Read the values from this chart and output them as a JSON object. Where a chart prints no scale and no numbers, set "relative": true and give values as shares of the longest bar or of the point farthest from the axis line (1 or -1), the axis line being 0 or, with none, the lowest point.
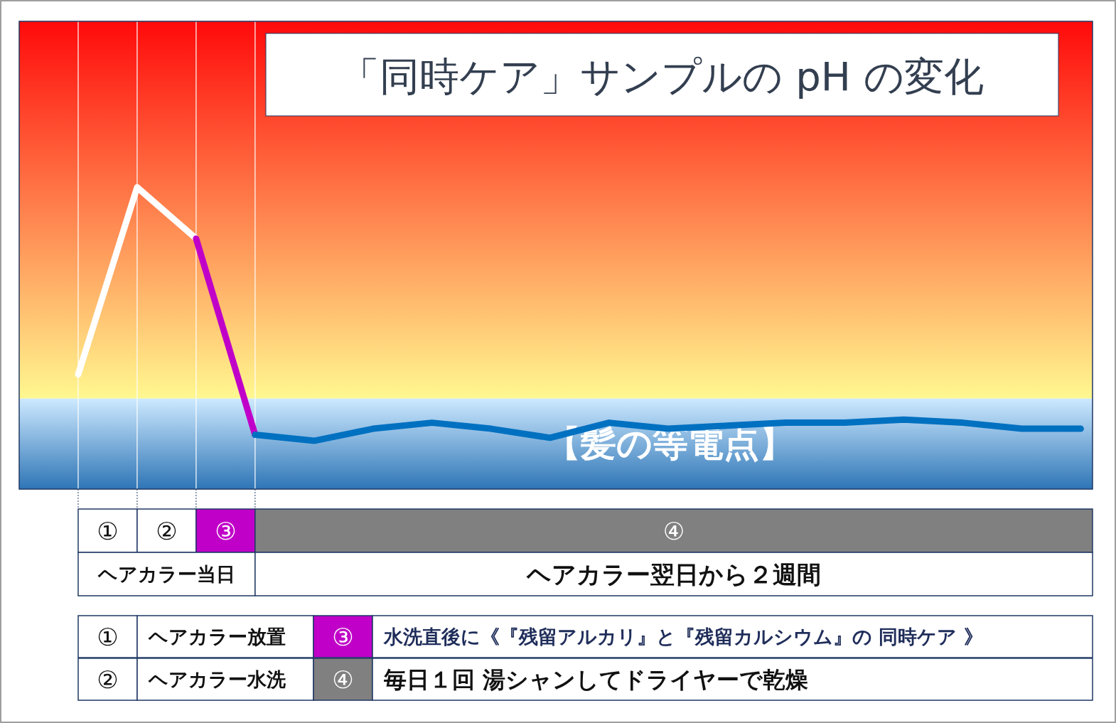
{
  "chart_data": {
    "type": "line",
    "title": "「同時ケア」サンプルの pH の変化",
    "relative": true,
    "categories": [
      null,
      null,
      null,
      null,
      null,
      null,
      null,
      null,
      null,
      null,
      null,
      null,
      null,
      null,
      null,
      null,
      null,
      null
    ],
    "series": [
      {
        "color": "#ffffff",
        "values": [
          0.38,
          1.0,
          0.83,
          null,
          null,
          null,
          null,
          null,
          null,
          null,
          null,
          null,
          null,
          null,
          null,
          null,
          null,
          null
        ]
      },
      {
        "color": "#c000c8",
        "values": [
          null,
          null,
          0.83,
          0.18,
          null,
          null,
          null,
          null,
          null,
          null,
          null,
          null,
          null,
          null,
          null,
          null,
          null,
          null
        ]
      },
      {
        "color": "#0070c0",
        "values": [
          null,
          null,
          null,
          0.18,
          0.16,
          0.2,
          0.22,
          0.2,
          0.17,
          0.22,
          0.2,
          0.21,
          0.22,
          0.22,
          0.23,
          0.22,
          0.2,
          0.2
        ]
      }
    ],
    "bands": [
      {
        "axis": "y",
        "from": 0,
        "to": 0.3,
        "label": "【髪の等電点】",
        "color": "#2e75b6"
      }
    ],
    "grid": "x",
    "annotations": [
      "①",
      "②",
      "③",
      "④",
      "ヘアカラー当日",
      "ヘアカラー翌日から２週間",
      "①",
      "ヘアカラー放置",
      "③",
      "水洗直後に《『残留アルカリ』と『残留カルシウム』の 同時ケア 》",
      "②",
      "ヘアカラー水洗",
      "④",
      "毎日１回 湯シャンしてドライヤーで乾燥"
    ]
  }
}
